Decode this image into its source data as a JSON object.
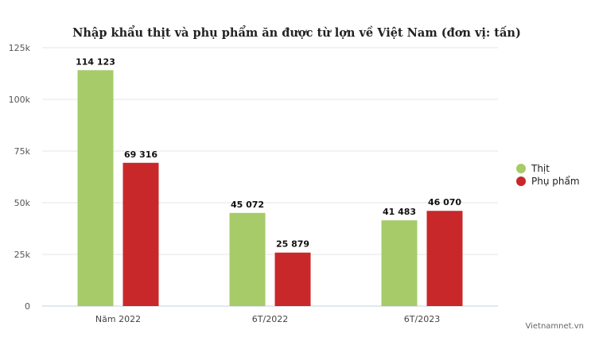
{
  "chart_data": {
    "type": "bar",
    "title": "Nhập khẩu thịt và phụ phẩm ăn được từ lợn về Việt Nam (đơn vị: tấn)",
    "categories": [
      "Năm 2022",
      "6T/2022",
      "6T/2023"
    ],
    "series": [
      {
        "name": "Thịt",
        "color": "#a6cb68",
        "values": [
          114123,
          45072,
          41483
        ],
        "labels": [
          "114 123",
          "45 072",
          "41 483"
        ]
      },
      {
        "name": "Phụ phẩm",
        "color": "#c8282a",
        "values": [
          69316,
          25879,
          46070
        ],
        "labels": [
          "69 316",
          "25 879",
          "46 070"
        ]
      }
    ],
    "ylim": [
      0,
      125000
    ],
    "yticks": [
      0,
      25000,
      50000,
      75000,
      100000,
      125000
    ],
    "ytick_labels": [
      "0",
      "25k",
      "50k",
      "75k",
      "100k",
      "125k"
    ],
    "grid": true,
    "legend_position": "right"
  },
  "credit": "Vietnamnet.vn"
}
